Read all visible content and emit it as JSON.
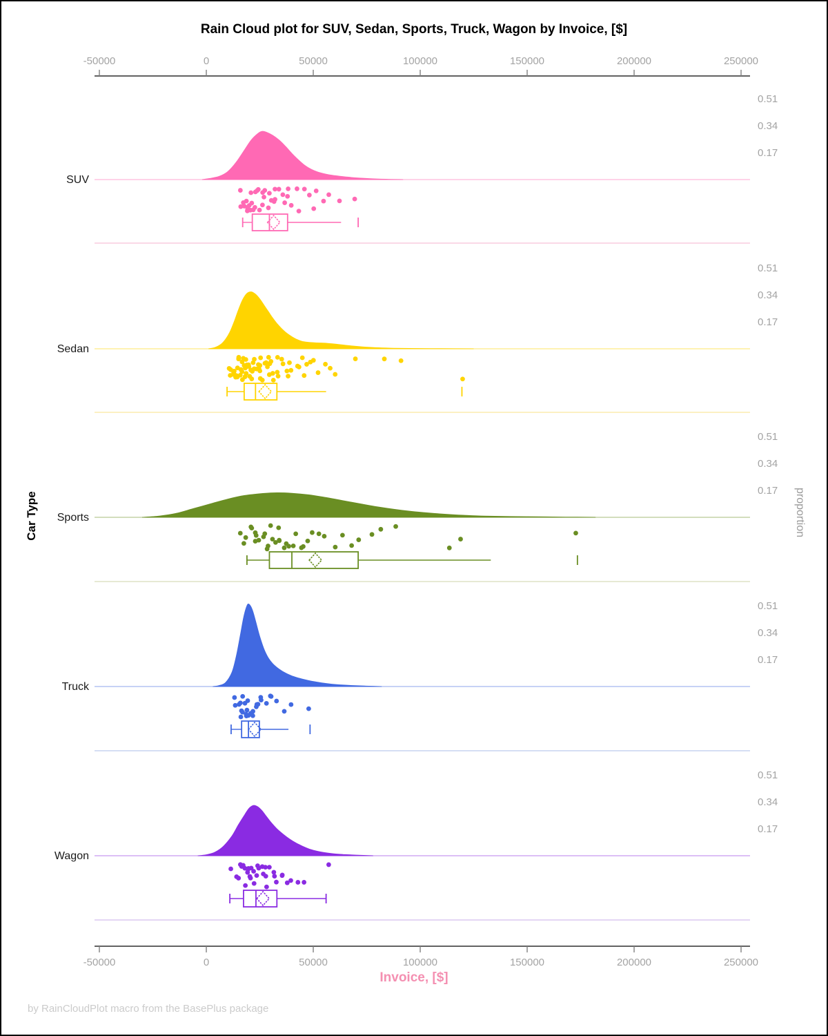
{
  "chart_data": {
    "type": "raincloud",
    "title": "Rain Cloud plot for SUV, Sedan, Sports, Truck, Wagon by Invoice, [$]",
    "xlabel": "Invoice, [$]",
    "ylabel_left": "Car Type",
    "ylabel_right": "proportion",
    "footer": "by RainCloudPlot macro from the BasePlus package",
    "xlim": [
      -50000,
      250000
    ],
    "x_ticks": [
      -50000,
      0,
      50000,
      100000,
      150000,
      200000,
      250000
    ],
    "x_tick_labels": [
      "-50000",
      "0",
      "50000",
      "100000",
      "150000",
      "200000",
      "250000"
    ],
    "proportion_ticks": [
      0.51,
      0.34,
      0.17
    ],
    "proportion_tick_labels": [
      "0.51",
      "0.34",
      "0.17"
    ],
    "groups": [
      {
        "name": "SUV",
        "color": "#FF69B4",
        "separator_color": "#F8CBDF",
        "density": [
          [
            -2000,
            0
          ],
          [
            2000,
            0.008
          ],
          [
            6000,
            0.02
          ],
          [
            10000,
            0.05
          ],
          [
            14000,
            0.11
          ],
          [
            18000,
            0.19
          ],
          [
            21000,
            0.25
          ],
          [
            24000,
            0.29
          ],
          [
            26000,
            0.305
          ],
          [
            28000,
            0.3
          ],
          [
            31000,
            0.28
          ],
          [
            34000,
            0.25
          ],
          [
            37000,
            0.21
          ],
          [
            40000,
            0.165
          ],
          [
            43000,
            0.125
          ],
          [
            46000,
            0.09
          ],
          [
            49000,
            0.065
          ],
          [
            52000,
            0.048
          ],
          [
            56000,
            0.034
          ],
          [
            60000,
            0.025
          ],
          [
            65000,
            0.017
          ],
          [
            70000,
            0.011
          ],
          [
            76000,
            0.006
          ],
          [
            84000,
            0.002
          ],
          [
            92000,
            0
          ]
        ],
        "box": {
          "whisker_low": 17000,
          "q1": 21500,
          "median": 29500,
          "mean": 31500,
          "q3": 38000,
          "whisker_high": 63000,
          "outliers": [
            71000
          ],
          "cap_high": false
        },
        "rain": [
          15800,
          16500,
          17200,
          17800,
          18300,
          18900,
          19400,
          19900,
          20400,
          20900,
          21300,
          21800,
          22300,
          22800,
          23300,
          23800,
          24400,
          25000,
          25600,
          26200,
          26900,
          27600,
          28400,
          29200,
          30000,
          30900,
          31800,
          32800,
          33900,
          35000,
          36200,
          37500,
          38900,
          40400,
          42000,
          43700,
          45500,
          47400,
          49500,
          51700,
          54000,
          56500,
          61300,
          70300
        ]
      },
      {
        "name": "Sedan",
        "color": "#FFD400",
        "separator_color": "#FBEBAE",
        "density": [
          [
            1000,
            0
          ],
          [
            4000,
            0.008
          ],
          [
            7000,
            0.03
          ],
          [
            9000,
            0.06
          ],
          [
            11000,
            0.105
          ],
          [
            13000,
            0.17
          ],
          [
            15000,
            0.245
          ],
          [
            17000,
            0.31
          ],
          [
            19000,
            0.35
          ],
          [
            21000,
            0.36
          ],
          [
            23000,
            0.345
          ],
          [
            25000,
            0.315
          ],
          [
            27000,
            0.275
          ],
          [
            29000,
            0.235
          ],
          [
            31000,
            0.195
          ],
          [
            33000,
            0.16
          ],
          [
            35000,
            0.13
          ],
          [
            37000,
            0.105
          ],
          [
            39000,
            0.085
          ],
          [
            41000,
            0.068
          ],
          [
            43000,
            0.055
          ],
          [
            45000,
            0.046
          ],
          [
            48000,
            0.04
          ],
          [
            52000,
            0.037
          ],
          [
            56000,
            0.035
          ],
          [
            60000,
            0.03
          ],
          [
            64000,
            0.024
          ],
          [
            68000,
            0.018
          ],
          [
            73000,
            0.012
          ],
          [
            79000,
            0.007
          ],
          [
            86000,
            0.004
          ],
          [
            95000,
            0.002
          ],
          [
            110000,
            0.001
          ],
          [
            125000,
            0
          ]
        ],
        "box": {
          "whisker_low": 9700,
          "q1": 17700,
          "median": 23000,
          "mean": 27500,
          "q3": 33000,
          "whisker_high": 56000,
          "outliers": [
            119500
          ],
          "cap_high": false
        },
        "rain": [
          10500,
          11200,
          11800,
          12300,
          12800,
          13200,
          13600,
          14000,
          14300,
          14600,
          14900,
          15200,
          15500,
          15800,
          16100,
          16400,
          16700,
          17000,
          17300,
          17600,
          17900,
          18200,
          18500,
          18800,
          19100,
          19400,
          19700,
          20000,
          20300,
          20600,
          20900,
          21200,
          21500,
          21900,
          22300,
          22700,
          23100,
          23500,
          23900,
          24300,
          24700,
          25100,
          25600,
          26100,
          26600,
          27100,
          27600,
          28200,
          28800,
          29400,
          30000,
          30700,
          31400,
          32100,
          32900,
          33700,
          34500,
          35400,
          36300,
          37300,
          38300,
          39400,
          40500,
          41700,
          43000,
          44400,
          45900,
          47500,
          49200,
          51000,
          53000,
          55200,
          57600,
          60200,
          69000,
          84000,
          91000,
          119500
        ]
      },
      {
        "name": "Sports",
        "color": "#6A8E23",
        "separator_color": "#DDE2C6",
        "density": [
          [
            -30000,
            0
          ],
          [
            -22000,
            0.008
          ],
          [
            -14000,
            0.025
          ],
          [
            -6000,
            0.055
          ],
          [
            2000,
            0.085
          ],
          [
            10000,
            0.115
          ],
          [
            18000,
            0.138
          ],
          [
            26000,
            0.15
          ],
          [
            33000,
            0.155
          ],
          [
            40000,
            0.152
          ],
          [
            48000,
            0.142
          ],
          [
            56000,
            0.125
          ],
          [
            64000,
            0.105
          ],
          [
            72000,
            0.085
          ],
          [
            80000,
            0.066
          ],
          [
            88000,
            0.05
          ],
          [
            96000,
            0.037
          ],
          [
            104000,
            0.027
          ],
          [
            112000,
            0.019
          ],
          [
            120000,
            0.013
          ],
          [
            130000,
            0.008
          ],
          [
            142000,
            0.005
          ],
          [
            155000,
            0.003
          ],
          [
            168000,
            0.0015
          ],
          [
            182000,
            0
          ]
        ],
        "box": {
          "whisker_low": 19000,
          "q1": 29500,
          "median": 40000,
          "mean": 51000,
          "q3": 71000,
          "whisker_high": 133000,
          "outliers": [
            173500
          ],
          "cap_high": false
        },
        "rain": [
          16000,
          18000,
          19000,
          20000,
          21000,
          22000,
          23000,
          24000,
          25000,
          26000,
          27000,
          28000,
          29000,
          30000,
          31000,
          32000,
          33000,
          34000,
          35000,
          36000,
          37000,
          38000,
          40000,
          42000,
          44000,
          46000,
          48000,
          50000,
          53000,
          56000,
          60000,
          64000,
          68000,
          72000,
          77000,
          82000,
          88000,
          113000,
          118000,
          173500
        ]
      },
      {
        "name": "Truck",
        "color": "#4169E1",
        "separator_color": "#C7D4F0",
        "density": [
          [
            3000,
            0
          ],
          [
            6000,
            0.006
          ],
          [
            9000,
            0.025
          ],
          [
            12000,
            0.09
          ],
          [
            14000,
            0.19
          ],
          [
            16000,
            0.33
          ],
          [
            17500,
            0.44
          ],
          [
            19000,
            0.51
          ],
          [
            20000,
            0.52
          ],
          [
            21500,
            0.485
          ],
          [
            23000,
            0.415
          ],
          [
            25000,
            0.315
          ],
          [
            27000,
            0.235
          ],
          [
            29000,
            0.18
          ],
          [
            31000,
            0.145
          ],
          [
            34000,
            0.11
          ],
          [
            37000,
            0.085
          ],
          [
            40000,
            0.067
          ],
          [
            44000,
            0.05
          ],
          [
            48000,
            0.037
          ],
          [
            52000,
            0.027
          ],
          [
            56000,
            0.019
          ],
          [
            61000,
            0.012
          ],
          [
            67000,
            0.007
          ],
          [
            74000,
            0.003
          ],
          [
            82000,
            0
          ]
        ],
        "box": {
          "whisker_low": 11600,
          "q1": 16500,
          "median": 19700,
          "mean": 22600,
          "q3": 24800,
          "whisker_high": 38400,
          "outliers": [
            48500
          ],
          "cap_high": false
        },
        "rain": [
          13000,
          13800,
          14500,
          15100,
          15700,
          16200,
          16700,
          17200,
          17700,
          18200,
          18700,
          19200,
          19700,
          20200,
          20800,
          21400,
          22000,
          22700,
          23500,
          24300,
          25200,
          26200,
          27500,
          29000,
          31000,
          33500,
          36500,
          40500,
          48000
        ]
      },
      {
        "name": "Wagon",
        "color": "#8A2BE2",
        "separator_color": "#DCC8F0",
        "density": [
          [
            -4000,
            0
          ],
          [
            0,
            0.006
          ],
          [
            4000,
            0.022
          ],
          [
            8000,
            0.06
          ],
          [
            12000,
            0.125
          ],
          [
            15000,
            0.195
          ],
          [
            18000,
            0.26
          ],
          [
            20000,
            0.3
          ],
          [
            22000,
            0.318
          ],
          [
            24000,
            0.31
          ],
          [
            26000,
            0.285
          ],
          [
            28000,
            0.25
          ],
          [
            30000,
            0.215
          ],
          [
            33000,
            0.17
          ],
          [
            36000,
            0.135
          ],
          [
            39000,
            0.105
          ],
          [
            42000,
            0.08
          ],
          [
            45000,
            0.06
          ],
          [
            48000,
            0.043
          ],
          [
            51000,
            0.031
          ],
          [
            55000,
            0.02
          ],
          [
            59000,
            0.013
          ],
          [
            64000,
            0.008
          ],
          [
            70000,
            0.004
          ],
          [
            78000,
            0
          ]
        ],
        "box": {
          "whisker_low": 11000,
          "q1": 17400,
          "median": 23200,
          "mean": 26500,
          "q3": 33000,
          "whisker_high": 56000,
          "outliers": [],
          "cap_high": true
        },
        "rain": [
          12000,
          13500,
          14500,
          15300,
          16000,
          16600,
          17200,
          17800,
          18400,
          19000,
          19600,
          20200,
          20800,
          21400,
          22000,
          22600,
          23200,
          23900,
          24600,
          25300,
          26100,
          26900,
          27800,
          28700,
          29700,
          30800,
          32000,
          33300,
          34700,
          36200,
          38000,
          40000,
          42500,
          45000,
          56500
        ]
      }
    ]
  },
  "styles": {
    "axis_line_color": "#2F2F2F",
    "tick_color": "#808080",
    "tick_label_color": "#A3A3A3",
    "title_color": "#000000",
    "category_label_color": "#1A1A1A",
    "xlabel_color": "#F48FB1",
    "right_label_color": "#9A9A9A",
    "footer_color": "#CBCBCB",
    "background": "#FFFFFF"
  }
}
